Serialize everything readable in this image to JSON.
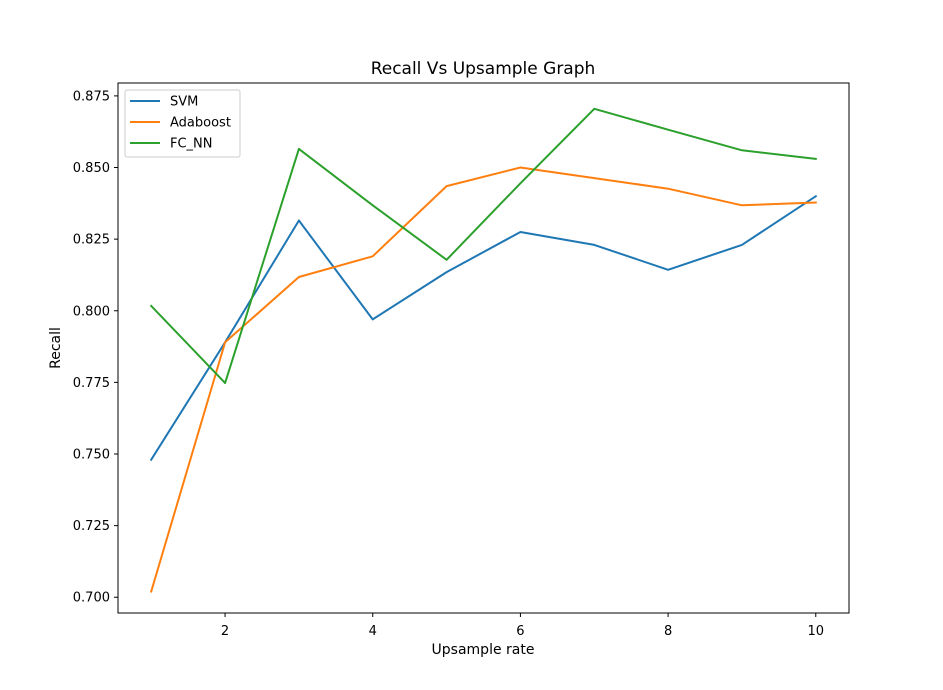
{
  "chart_data": {
    "type": "line",
    "title": "Recall Vs Upsample Graph",
    "xlabel": "Upsample rate",
    "ylabel": "Recall",
    "x": [
      1,
      2,
      3,
      4,
      5,
      6,
      7,
      8,
      9,
      10
    ],
    "xlim": [
      0.55,
      10.45
    ],
    "ylim": [
      0.6945,
      0.8795
    ],
    "xticks": [
      2,
      4,
      6,
      8,
      10
    ],
    "yticks": [
      0.7,
      0.725,
      0.75,
      0.775,
      0.8,
      0.825,
      0.85,
      0.875
    ],
    "ytick_labels": [
      "0.700",
      "0.725",
      "0.750",
      "0.775",
      "0.800",
      "0.825",
      "0.850",
      "0.875"
    ],
    "grid": false,
    "legend_position": "upper left",
    "series": [
      {
        "name": "SVM",
        "color": "#1f77b4",
        "values": [
          0.748,
          0.789,
          0.8315,
          0.797,
          0.8135,
          0.8275,
          0.823,
          0.8143,
          0.823,
          0.84
        ]
      },
      {
        "name": "Adaboost",
        "color": "#ff7f0e",
        "values": [
          0.702,
          0.789,
          0.8118,
          0.819,
          0.8435,
          0.85,
          0.8463,
          0.8426,
          0.8368,
          0.8378
        ]
      },
      {
        "name": "FC_NN",
        "color": "#2ca02c",
        "values": [
          0.8017,
          0.7748,
          0.8565,
          0.8368,
          0.8178,
          0.8445,
          0.8705,
          0.8632,
          0.856,
          0.853
        ]
      }
    ]
  }
}
